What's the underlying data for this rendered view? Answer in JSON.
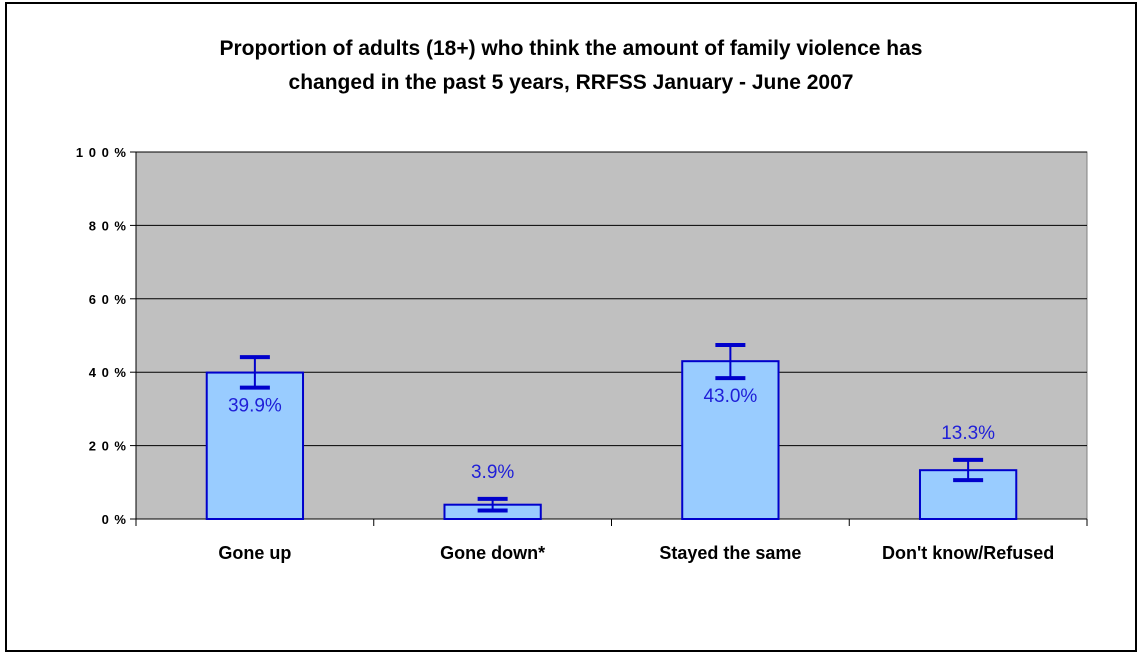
{
  "chart_data": {
    "type": "bar",
    "title": "Proportion of adults (18+) who think the amount of family violence has changed in the past 5 years, RRFSS January - June 2007",
    "title_lines": [
      "Proportion of adults (18+) who think the amount of family violence has",
      "changed in the past 5 years, RRFSS January - June 2007"
    ],
    "categories": [
      "Gone up",
      "Gone down*",
      "Stayed the same",
      "Don't know/Refused"
    ],
    "values": [
      39.9,
      3.9,
      43.0,
      13.3
    ],
    "error_low": [
      35.8,
      2.3,
      38.4,
      10.6
    ],
    "error_high": [
      44.1,
      5.5,
      47.4,
      16.1
    ],
    "data_labels": [
      "39.9%",
      "3.9%",
      "43.0%",
      "13.3%"
    ],
    "yticks": [
      0,
      20,
      40,
      60,
      80,
      100
    ],
    "ytick_labels": [
      "0 %",
      "2 0 %",
      "4 0 %",
      "6 0 %",
      "8 0 %",
      "1 0 0 %"
    ],
    "ylim": [
      0,
      100
    ],
    "xlabel": "",
    "ylabel": "",
    "grid": true,
    "colors": {
      "plot_bg": "#c0c0c0",
      "bar_fill": "#99ccff",
      "bar_stroke": "#0000cc",
      "error_bar": "#0000cc",
      "label": "#1f1fd8"
    }
  }
}
